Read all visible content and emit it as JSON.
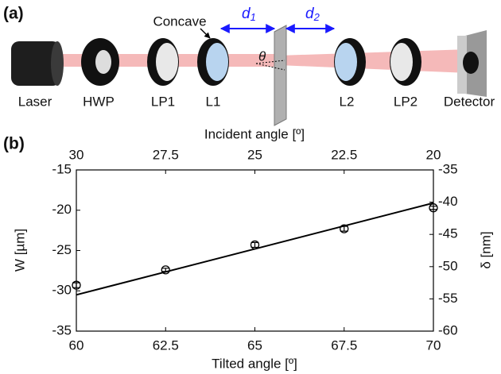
{
  "diagram": {
    "label": "(a)",
    "laser": "Laser",
    "hwp": "HWP",
    "lp1": "LP1",
    "l1": "L1",
    "l2": "L2",
    "lp2": "LP2",
    "detector": "Detector",
    "concave": "Concave",
    "theta": "θ",
    "d1": {
      "base": "d",
      "sub": "1"
    },
    "d2": {
      "base": "d",
      "sub": "2"
    }
  },
  "chart_data": {
    "type": "scatter",
    "panel_label": "(b)",
    "xlabel": "Tilted angle [º]",
    "x2label": "Incident angle [º]",
    "ylabel": "W [µm]",
    "y2label": "δ [nm]",
    "xlim": [
      60,
      70
    ],
    "xticks": [
      60,
      62.5,
      65,
      67.5,
      70
    ],
    "x2lim": [
      30,
      20
    ],
    "x2ticks": [
      30,
      27.5,
      25,
      22.5,
      20
    ],
    "ylim": [
      -35,
      -15
    ],
    "yticks": [
      -35,
      -30,
      -25,
      -20,
      -15
    ],
    "y2lim": [
      -60,
      -35
    ],
    "y2ticks": [
      -60,
      -55,
      -50,
      -45,
      -40,
      -35
    ],
    "series": [
      {
        "color": "#000000",
        "style": "markers",
        "x": [
          60,
          62.5,
          65,
          67.5,
          70
        ],
        "values": [
          -29.3,
          -27.4,
          -24.3,
          -22.3,
          -19.7
        ],
        "errors": [
          0.3,
          0.2,
          0.3,
          0.3,
          0.2
        ]
      },
      {
        "color": "#000000",
        "style": "line",
        "x": [
          60,
          70
        ],
        "values": [
          -30.5,
          -19.1
        ]
      }
    ]
  }
}
